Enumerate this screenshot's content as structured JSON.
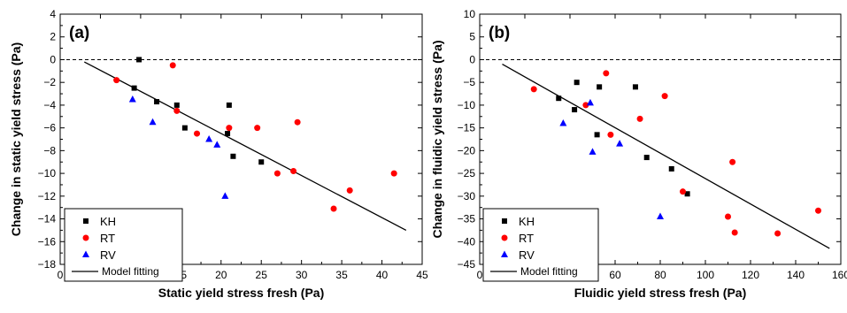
{
  "colors": {
    "KH": "#000000",
    "RT": "#ff0000",
    "RV": "#0000ff",
    "model": "#000000"
  },
  "chart_data": [
    {
      "type": "scatter",
      "panel_label": "(a)",
      "xlabel": "Static yield stress fresh (Pa)",
      "ylabel": "Change in static yield stress (Pa)",
      "xlim": [
        0,
        45
      ],
      "ylim": [
        -18,
        4
      ],
      "xticks": [
        0,
        5,
        10,
        15,
        20,
        25,
        30,
        35,
        40,
        45
      ],
      "yticks": [
        -18,
        -16,
        -14,
        -12,
        -10,
        -8,
        -6,
        -4,
        -2,
        0,
        2,
        4
      ],
      "reference_line_y": 0,
      "legend_position": "bottom-left",
      "series": [
        {
          "name": "KH",
          "marker": "square",
          "points": [
            [
              9.8,
              0
            ],
            [
              9.2,
              -2.5
            ],
            [
              12,
              -3.7
            ],
            [
              14.5,
              -4
            ],
            [
              15.5,
              -6
            ],
            [
              20.8,
              -6.5
            ],
            [
              21,
              -4
            ],
            [
              21.5,
              -8.5
            ],
            [
              25,
              -9
            ]
          ]
        },
        {
          "name": "RT",
          "marker": "circle",
          "points": [
            [
              7,
              -1.8
            ],
            [
              14,
              -0.5
            ],
            [
              14.5,
              -4.5
            ],
            [
              17,
              -6.5
            ],
            [
              21,
              -6
            ],
            [
              24.5,
              -6
            ],
            [
              27,
              -10
            ],
            [
              29,
              -9.8
            ],
            [
              29.5,
              -5.5
            ],
            [
              34,
              -13.1
            ],
            [
              36,
              -11.5
            ],
            [
              41.5,
              -10
            ]
          ]
        },
        {
          "name": "RV",
          "marker": "triangle",
          "points": [
            [
              9,
              -3.5
            ],
            [
              11.5,
              -5.5
            ],
            [
              18.5,
              -7
            ],
            [
              19.5,
              -7.5
            ],
            [
              20.5,
              -12
            ]
          ]
        }
      ],
      "model_line": {
        "name": "Model fitting",
        "x": [
          3,
          43
        ],
        "y": [
          -0.2,
          -15
        ]
      }
    },
    {
      "type": "scatter",
      "panel_label": "(b)",
      "xlabel": "Fluidic yield stress fresh (Pa)",
      "ylabel": "Change in fluidic yield stress (Pa)",
      "xlim": [
        0,
        160
      ],
      "ylim": [
        -45,
        10
      ],
      "xticks": [
        0,
        20,
        40,
        60,
        80,
        100,
        120,
        140,
        160
      ],
      "yticks": [
        -45,
        -40,
        -35,
        -30,
        -25,
        -20,
        -15,
        -10,
        -5,
        0,
        5,
        10
      ],
      "reference_line_y": 0,
      "legend_position": "bottom-right",
      "series": [
        {
          "name": "KH",
          "marker": "square",
          "points": [
            [
              35,
              -8.5
            ],
            [
              42,
              -11
            ],
            [
              43,
              -5
            ],
            [
              52,
              -16.5
            ],
            [
              53,
              -6
            ],
            [
              69,
              -6
            ],
            [
              74,
              -21.5
            ],
            [
              85,
              -24
            ],
            [
              92,
              -29.5
            ]
          ]
        },
        {
          "name": "RT",
          "marker": "circle",
          "points": [
            [
              24,
              -6.5
            ],
            [
              47,
              -10
            ],
            [
              56,
              -3
            ],
            [
              58,
              -16.5
            ],
            [
              71,
              -13
            ],
            [
              82,
              -8
            ],
            [
              90,
              -29
            ],
            [
              110,
              -34.5
            ],
            [
              112,
              -22.5
            ],
            [
              113,
              -38
            ],
            [
              132,
              -38.2
            ],
            [
              150,
              -33.2
            ]
          ]
        },
        {
          "name": "RV",
          "marker": "triangle",
          "points": [
            [
              37,
              -14
            ],
            [
              49,
              -9.5
            ],
            [
              50,
              -20.3
            ],
            [
              62,
              -18.5
            ],
            [
              80,
              -34.5
            ]
          ]
        }
      ],
      "model_line": {
        "name": "Model fitting",
        "x": [
          10,
          155
        ],
        "y": [
          -1,
          -41.5
        ]
      }
    }
  ]
}
